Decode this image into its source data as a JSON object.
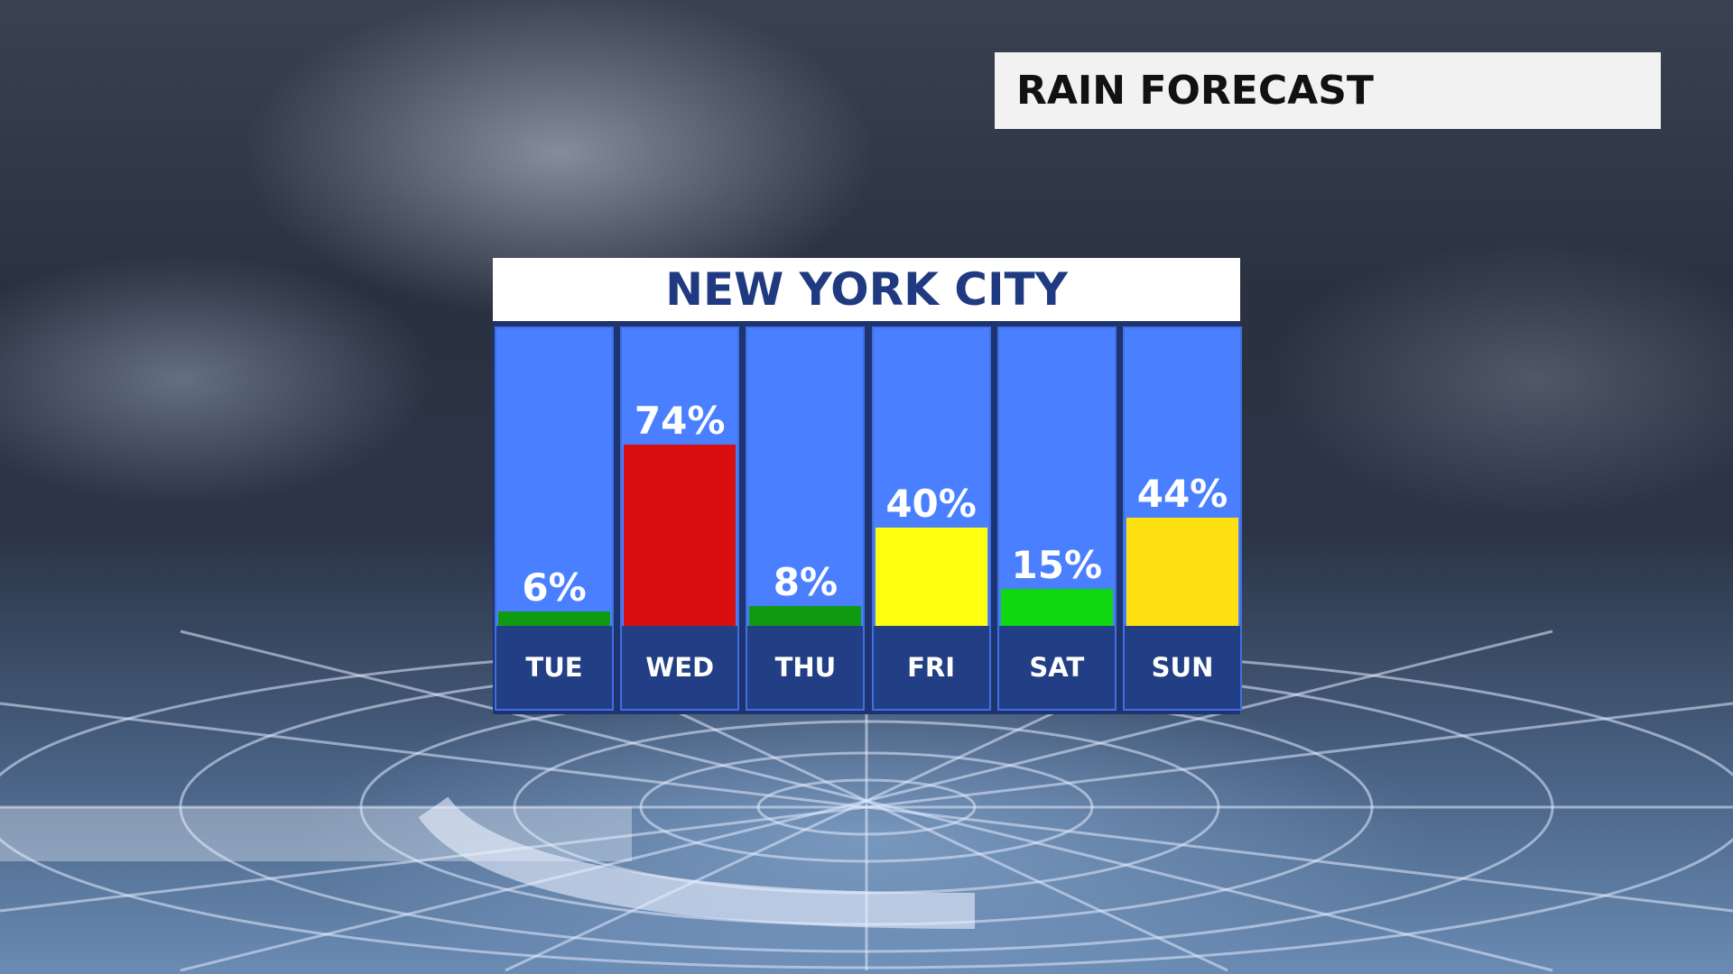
{
  "header": {
    "title": "RAIN FORECAST"
  },
  "panel": {
    "location": "NEW YORK CITY"
  },
  "chart_data": {
    "type": "bar",
    "title": "NEW YORK CITY",
    "categories": [
      "TUE",
      "WED",
      "THU",
      "FRI",
      "SAT",
      "SUN"
    ],
    "values": [
      6,
      74,
      8,
      40,
      15,
      44
    ],
    "labels": [
      "6%",
      "74%",
      "8%",
      "40%",
      "15%",
      "44%"
    ],
    "bar_colors": [
      "#0f9a12",
      "#d90f0f",
      "#0f9a12",
      "#ffff10",
      "#10d810",
      "#ffe010"
    ],
    "column_color": "#4a80ff",
    "label_bg_color": "#223f86",
    "ylim": [
      0,
      100
    ],
    "grid": false
  }
}
